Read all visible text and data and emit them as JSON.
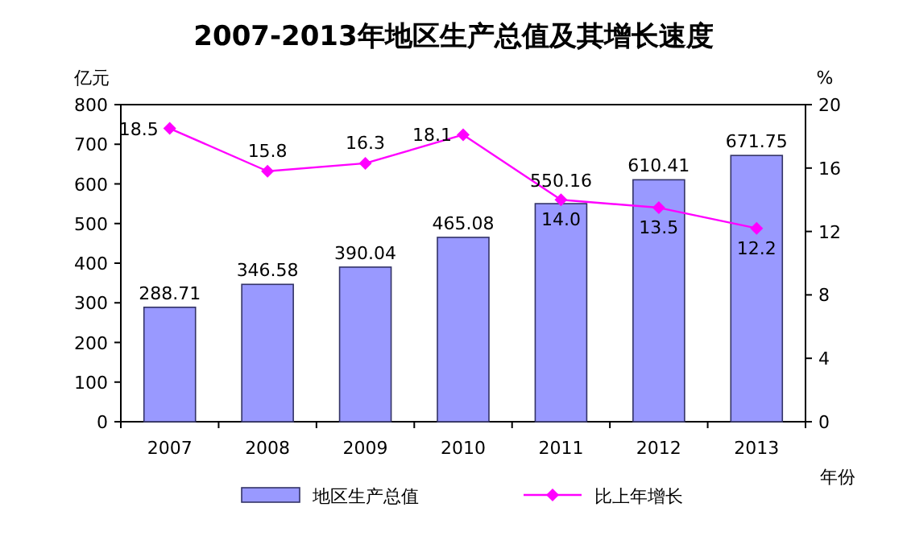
{
  "chart_data": {
    "type": "bar",
    "title": "2007-2013年地区生产总值及其增长速度",
    "xlabel": "年份",
    "ylabel": "亿元",
    "y2label": "%",
    "categories": [
      "2007",
      "2008",
      "2009",
      "2010",
      "2011",
      "2012",
      "2013"
    ],
    "series": [
      {
        "name": "地区生产总值",
        "color": "#9999ff",
        "values": [
          288.71,
          346.58,
          390.04,
          465.08,
          550.16,
          610.41,
          671.75
        ]
      },
      {
        "name": "比上年增长",
        "type": "line",
        "axis": "y2",
        "color": "#ff00ff",
        "values": [
          18.5,
          15.8,
          16.3,
          18.1,
          14.0,
          13.5,
          12.2
        ],
        "value_labels": [
          "18.5",
          "15.8",
          "16.3",
          "18.1",
          "14.0",
          "13.5",
          "12.2"
        ]
      }
    ],
    "ylim": [
      0,
      800
    ],
    "yticks": [
      0,
      100,
      200,
      300,
      400,
      500,
      600,
      700,
      800
    ],
    "y2lim": [
      0,
      20
    ],
    "y2ticks": [
      0,
      4,
      8,
      12,
      16,
      20
    ],
    "marker": "diamond",
    "data_labels": true,
    "legend": "bottom"
  }
}
